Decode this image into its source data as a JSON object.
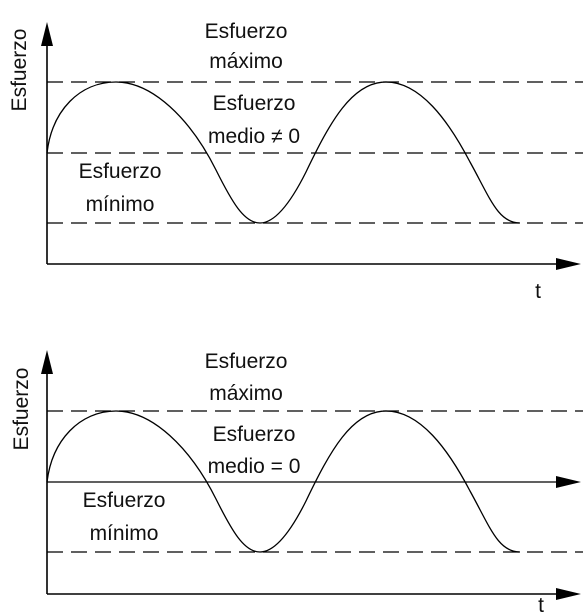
{
  "panels": [
    {
      "ylabel": "Esfuerzo",
      "xlabel": "t",
      "max_label": [
        "Esfuerzo",
        "máximo"
      ],
      "mean_label": [
        "Esfuerzo",
        "medio ≠ 0"
      ],
      "min_label": [
        "Esfuerzo",
        "mínimo"
      ],
      "mean_style": "dashed"
    },
    {
      "ylabel": "Esfuerzo",
      "xlabel": "t",
      "max_label": [
        "Esfuerzo",
        "máximo"
      ],
      "mean_label": [
        "Esfuerzo",
        "medio = 0"
      ],
      "min_label": [
        "Esfuerzo",
        "mínimo"
      ],
      "mean_style": "solid"
    }
  ]
}
